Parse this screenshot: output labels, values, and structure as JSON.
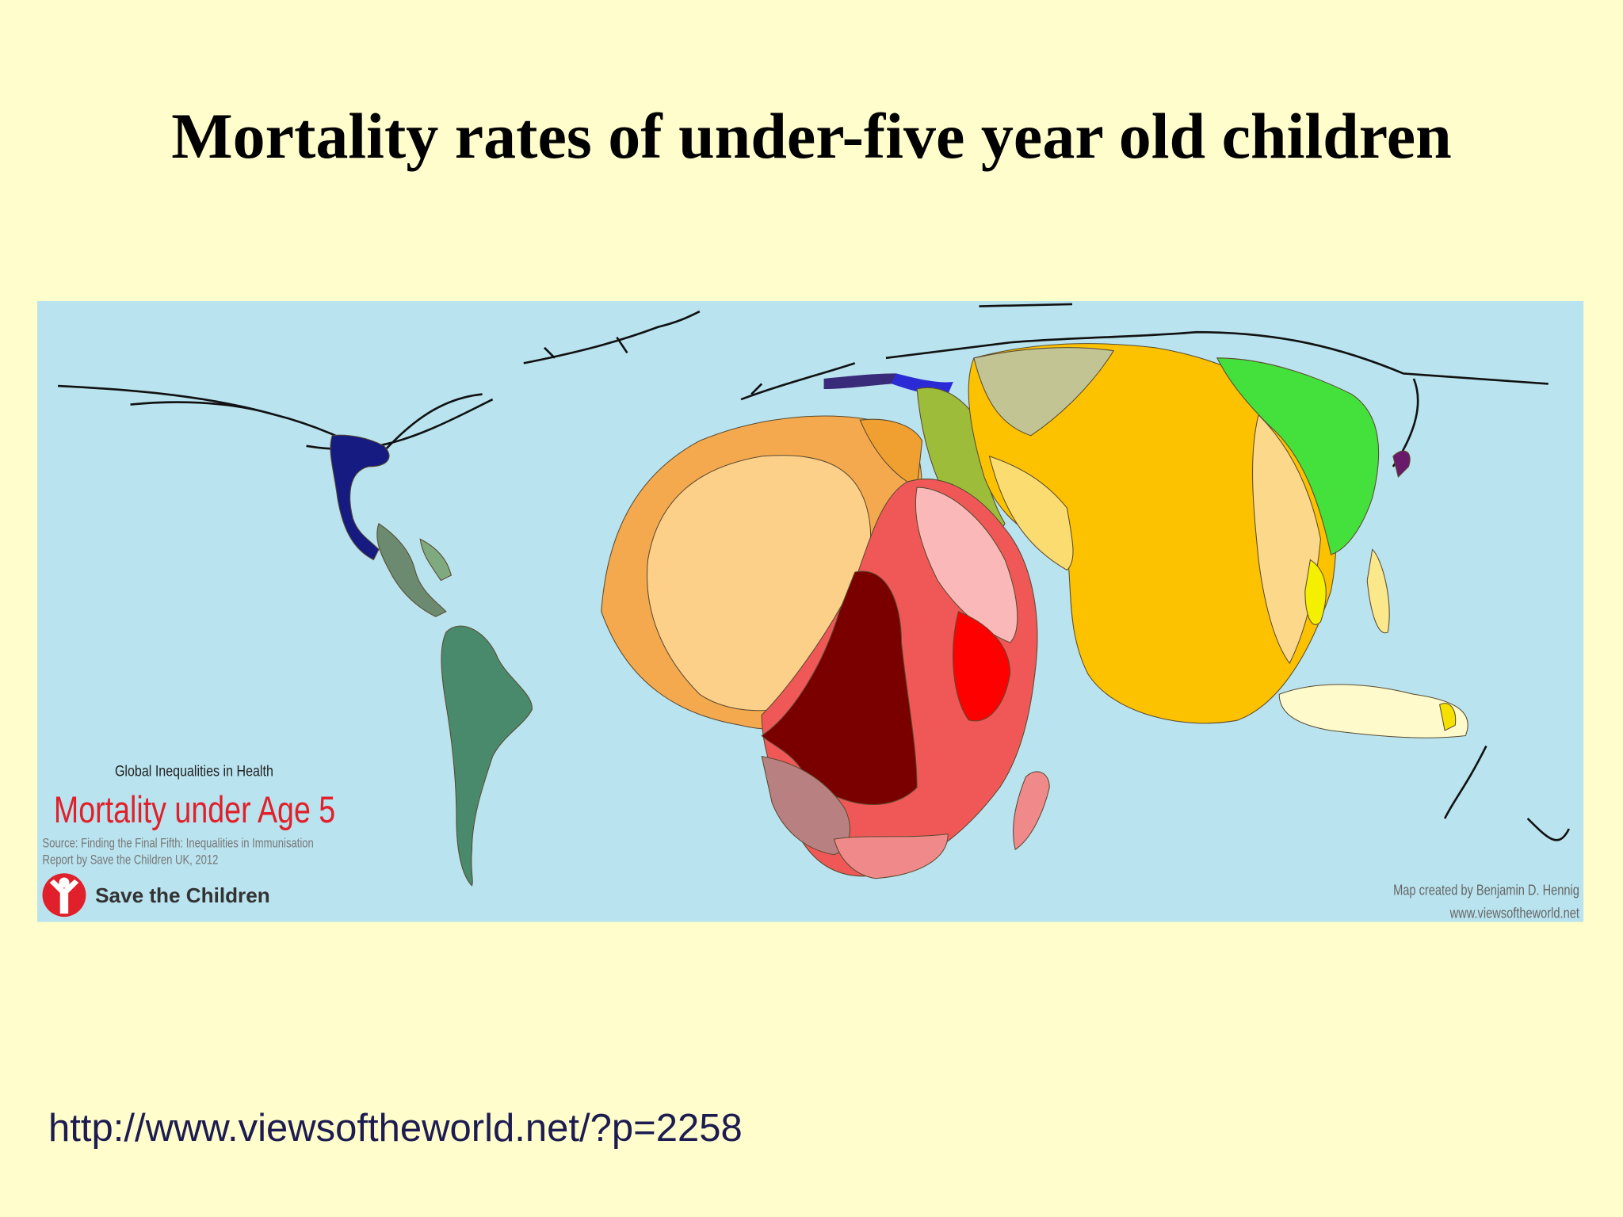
{
  "slide": {
    "title": "Mortality rates of under-five year old children",
    "map": {
      "kicker": "Global Inequalities in Health",
      "heading": "Mortality under Age 5",
      "source_lines": [
        "Source: Finding the Final Fifth: Inequalities in Immunisation",
        "Report by Save the Children UK, 2012"
      ],
      "logo_text": "Save the Children",
      "credit_lines": [
        "Map created by Benjamin D. Hennig",
        "www.viewsoftheworld.net"
      ]
    },
    "url": "http://www.viewsoftheworld.net/?p=2258"
  }
}
